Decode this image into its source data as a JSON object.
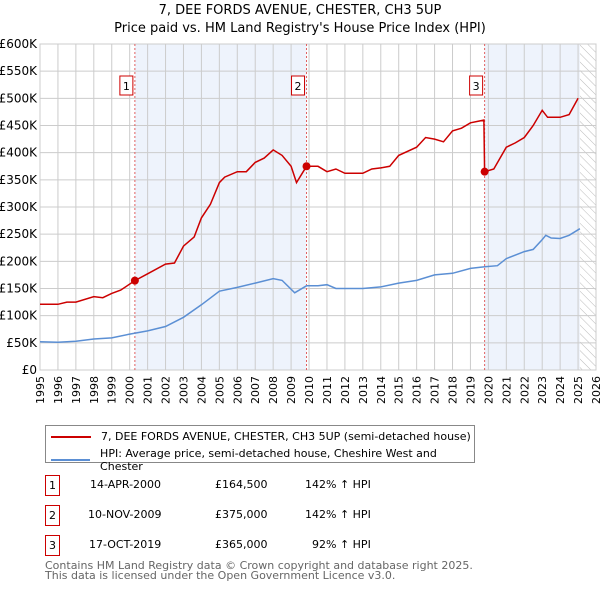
{
  "header": {
    "title": "7, DEE FORDS AVENUE, CHESTER, CH3 5UP",
    "subtitle": "Price paid vs. HM Land Registry's House Price Index (HPI)"
  },
  "chart_data": {
    "type": "line",
    "title": "7, DEE FORDS AVENUE, CHESTER, CH3 5UP",
    "subtitle": "Price paid vs. HM Land Registry's House Price Index (HPI)",
    "xlim": [
      1995,
      2026
    ],
    "ylim": [
      0,
      600000
    ],
    "x_ticks": [
      "1995",
      "1996",
      "1997",
      "1998",
      "1999",
      "2000",
      "2001",
      "2002",
      "2003",
      "2004",
      "2005",
      "2006",
      "2007",
      "2008",
      "2009",
      "2010",
      "2011",
      "2012",
      "2013",
      "2014",
      "2015",
      "2016",
      "2017",
      "2018",
      "2019",
      "2020",
      "2021",
      "2022",
      "2023",
      "2024",
      "2025",
      "2026"
    ],
    "y_ticks": [
      "£0",
      "£50K",
      "£100K",
      "£150K",
      "£200K",
      "£250K",
      "£300K",
      "£350K",
      "£400K",
      "£450K",
      "£500K",
      "£550K",
      "£600K"
    ],
    "grid": true,
    "colors": {
      "property": "#cc0000",
      "hpi": "#5b8fd4",
      "shade": "#eef3fc",
      "marker": "#cc0000"
    },
    "shaded_ranges": [
      [
        2000.29,
        2009.86
      ],
      [
        2019.79,
        2025.1
      ]
    ],
    "hatch_from": 2025.1,
    "series": [
      {
        "name": "7, DEE FORDS AVENUE, CHESTER, CH3 5UP (semi-detached house)",
        "color": "#cc0000",
        "x": [
          1995,
          1996,
          1996.5,
          1997,
          1998,
          1998.5,
          1999,
          1999.5,
          2000.29,
          2001,
          2002,
          2002.5,
          2003,
          2003.6,
          2004,
          2004.5,
          2005,
          2005.3,
          2006,
          2006.5,
          2007,
          2007.5,
          2008,
          2008.5,
          2009,
          2009.3,
          2009.86,
          2010.5,
          2011,
          2011.5,
          2012,
          2013,
          2013.5,
          2014,
          2014.5,
          2015,
          2016,
          2016.5,
          2017,
          2017.5,
          2018,
          2018.5,
          2019,
          2019.75,
          2019.79,
          2020.3,
          2021,
          2021.5,
          2022,
          2022.5,
          2023,
          2023.3,
          2024,
          2024.5,
          2025
        ],
        "values": [
          121000,
          121000,
          125000,
          125000,
          135000,
          133000,
          141000,
          147000,
          164500,
          177000,
          195000,
          197000,
          228000,
          245000,
          280000,
          305000,
          345000,
          355000,
          365000,
          365000,
          382000,
          390000,
          405000,
          395000,
          375000,
          345000,
          375000,
          375000,
          365000,
          370000,
          362000,
          362000,
          370000,
          372000,
          375000,
          395000,
          410000,
          428000,
          425000,
          420000,
          440000,
          445000,
          455000,
          460000,
          365000,
          370000,
          410000,
          418000,
          428000,
          450000,
          478000,
          465000,
          465000,
          470000,
          500000
        ]
      },
      {
        "name": "HPI: Average price, semi-detached house, Cheshire West and Chester",
        "color": "#5b8fd4",
        "x": [
          1995,
          1996,
          1997,
          1998,
          1999,
          2000,
          2001,
          2002,
          2003,
          2004,
          2005,
          2006,
          2007,
          2008,
          2008.5,
          2009.2,
          2009.86,
          2010.5,
          2011,
          2011.5,
          2012,
          2013,
          2014,
          2015,
          2016,
          2017,
          2018,
          2019,
          2019.8,
          2020.5,
          2021,
          2022,
          2022.5,
          2023,
          2023.2,
          2023.5,
          2024,
          2024.5,
          2025,
          2025.1
        ],
        "values": [
          52000,
          51000,
          53000,
          57000,
          59000,
          66000,
          72000,
          80000,
          97000,
          120000,
          145000,
          152000,
          160000,
          168000,
          165000,
          142000,
          155000,
          155000,
          157000,
          150000,
          150000,
          150000,
          153000,
          160000,
          165000,
          175000,
          178000,
          187000,
          190000,
          192000,
          205000,
          218000,
          222000,
          240000,
          248000,
          243000,
          242000,
          248000,
          258000,
          260000
        ]
      }
    ],
    "sales": [
      {
        "label": "1",
        "x": 2000.29,
        "value": 164500,
        "date": "14-APR-2000",
        "price": "£164,500",
        "hpi": "142% ↑ HPI"
      },
      {
        "label": "2",
        "x": 2009.86,
        "value": 375000,
        "date": "10-NOV-2009",
        "price": "£375,000",
        "hpi": "142% ↑ HPI"
      },
      {
        "label": "3",
        "x": 2019.79,
        "value": 365000,
        "date": "17-OCT-2019",
        "price": "£365,000",
        "hpi": "92% ↑ HPI"
      }
    ],
    "legend": [
      "7, DEE FORDS AVENUE, CHESTER, CH3 5UP (semi-detached house)",
      "HPI: Average price, semi-detached house, Cheshire West and Chester"
    ],
    "legend_placement": "bottom"
  },
  "footer": {
    "line1": "Contains HM Land Registry data © Crown copyright and database right 2025.",
    "line2": "This data is licensed under the Open Government Licence v3.0."
  }
}
